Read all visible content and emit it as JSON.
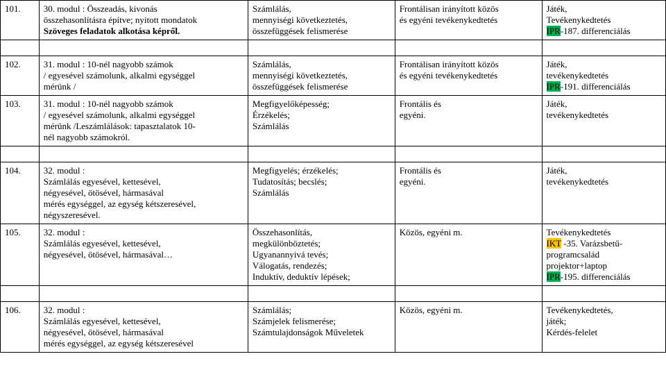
{
  "rows": [
    {
      "num": "101.",
      "topic_lines": [
        "30. modul : Összeadás, kivonás",
        "összehasonlításra építve; nyitott mondatok",
        "Szöveges feladatok alkotása képről."
      ],
      "skills_lines": [
        "Számlálás,",
        "mennyiségi következtetés,",
        "összefüggések felismerése"
      ],
      "form_lines": [
        "Frontálisan irányított közös",
        "és egyéni tevékenykedtetés"
      ],
      "notes": [
        {
          "t": "Játék,",
          "hl": null
        },
        {
          "t": "Tevékenykedtetés",
          "hl": null
        },
        {
          "pre": "",
          "hl": "green",
          "t": "IPR",
          "post": "-187. differenciálás"
        }
      ]
    },
    {
      "num": "102.",
      "topic_lines": [
        "31. modul : 10-nél nagyobb számok",
        "/ egyesével számolunk, alkalmi egységgel",
        "mérünk /"
      ],
      "skills_lines": [
        "Számlálás,",
        "mennyiségi következtetés,",
        "összefüggések felismerése"
      ],
      "form_lines": [
        "Frontálisan irányított közös",
        "és egyéni tevékenykedtetés"
      ],
      "notes": [
        {
          "t": "Játék,",
          "hl": null
        },
        {
          "t": "tevékenykedtetés",
          "hl": null
        },
        {
          "pre": "",
          "hl": "green",
          "t": "IPR",
          "post": "-191. differenciálás"
        }
      ]
    },
    {
      "num": "103.",
      "topic_lines": [
        "31. modul : 10-nél nagyobb számok",
        "/ egyesével számolunk, alkalmi egységgel",
        "mérünk /Leszámlálások: tapasztalatok 10-",
        "nél nagyobb számokról."
      ],
      "skills_lines": [
        "Megfigyelőképesség;",
        "Érzékelés;",
        "Számlálás"
      ],
      "form_lines": [
        "Frontális és",
        "egyéni."
      ],
      "notes": [
        {
          "t": "Játék,",
          "hl": null
        },
        {
          "t": "tevékenykedtetés",
          "hl": null
        }
      ]
    },
    {
      "num": "104.",
      "topic_lines": [
        "32. modul :",
        "Számlálás egyesével, kettesével,",
        "négyesével, ötösével, hármasával",
        "mérés egységgel, az egység kétszeresével,",
        "négyszeresével."
      ],
      "skills_lines": [
        "Megfigyelés; érzékelés;",
        "Tudatosítás; becslés;",
        "Számlálás"
      ],
      "form_lines": [
        "Frontális és",
        "egyéni."
      ],
      "notes": [
        {
          "t": "Játék,",
          "hl": null
        },
        {
          "t": "tevékenykedtetés",
          "hl": null
        }
      ]
    },
    {
      "num": "105.",
      "topic_lines": [
        "32. modul :",
        "Számlálás egyesével, kettesével,",
        "négyesével, ötösével, hármasával…"
      ],
      "skills_lines": [
        "Összehasonlítás,",
        "megkülönböztetés;",
        "Ugyanannyivá tevés;",
        "Válogatás, rendezés;",
        "Induktív, deduktív lépések;"
      ],
      "form_lines": [
        "Közös, egyéni m."
      ],
      "notes": [
        {
          "t": "Tevékenykedtetés",
          "hl": null
        },
        {
          "pre": "",
          "hl": "orange",
          "t": "IKT",
          "post": " -35. Varázsbetű-"
        },
        {
          "t": "programcsalád",
          "hl": null
        },
        {
          "t": "projektor+laptop",
          "hl": null
        },
        {
          "pre": "",
          "hl": "green",
          "t": "IPR",
          "post": "-195. differenciálás"
        }
      ]
    },
    {
      "num": "106.",
      "topic_lines": [
        "32. modul :",
        "Számlálás egyesével, kettesével,",
        "négyesével, ötösével, hármasával",
        "mérés egységgel, az egység kétszeresével"
      ],
      "skills_lines": [
        "Számlálás;",
        "Számjelek felismerése;",
        "Számtulajdonságok Műveletek"
      ],
      "form_lines": [
        "Közös, egyéni m."
      ],
      "notes": [
        {
          "t": "Tevékenykedtetés,",
          "hl": null
        },
        {
          "t": " játék;",
          "hl": null
        },
        {
          "t": "Kérdés-felelet",
          "hl": null
        }
      ]
    }
  ],
  "spacer_after": [
    0,
    2,
    4
  ]
}
